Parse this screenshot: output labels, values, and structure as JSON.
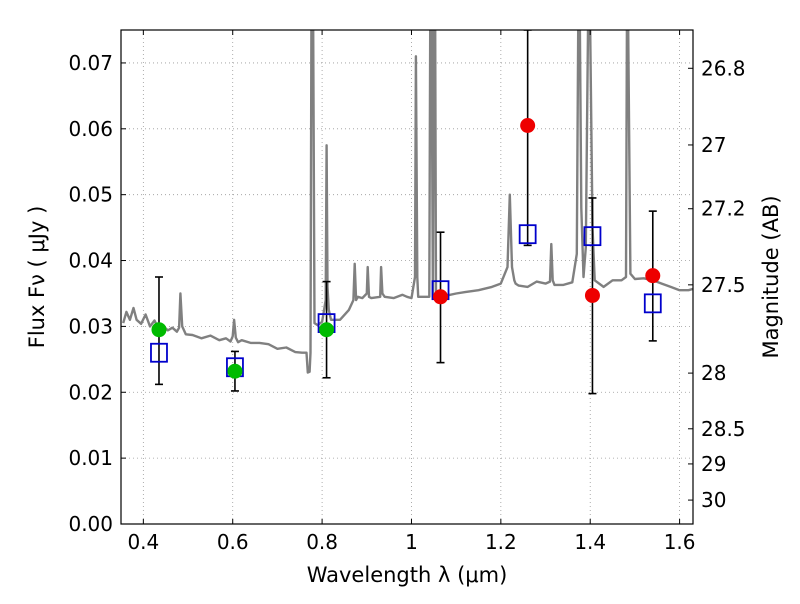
{
  "chart_data": {
    "type": "scatter",
    "xlabel": "Wavelength  λ (μm)",
    "ylabel": "Flux  Fν  ( μJy )",
    "y2label": "Magnitude (AB)",
    "xlim": [
      0.35,
      1.63
    ],
    "ylim": [
      0.0,
      0.075
    ],
    "grid": true,
    "x_ticks": [
      0.4,
      0.6,
      0.8,
      1.0,
      1.2,
      1.4,
      1.6
    ],
    "x_tick_labels": [
      "0.4",
      "0.6",
      "0.8",
      "1",
      "1.2",
      "1.4",
      "1.6"
    ],
    "y_ticks": [
      0.0,
      0.01,
      0.02,
      0.03,
      0.04,
      0.05,
      0.06,
      0.07
    ],
    "y_tick_labels": [
      "0.00",
      "0.01",
      "0.02",
      "0.03",
      "0.04",
      "0.05",
      "0.06",
      "0.07"
    ],
    "y2_ticks": [
      {
        "mag": 26.8,
        "label": "26.8"
      },
      {
        "mag": 27,
        "label": "27"
      },
      {
        "mag": 27.2,
        "label": "27.2"
      },
      {
        "mag": 27.5,
        "label": "27.5"
      },
      {
        "mag": 28,
        "label": "28"
      },
      {
        "mag": 28.5,
        "label": "28.5"
      },
      {
        "mag": 29,
        "label": "29"
      },
      {
        "mag": 30,
        "label": "30"
      }
    ],
    "colors": {
      "spectrum": "#808080",
      "model_box": "#0000cc",
      "detection": "#00bb00",
      "photometry": "#ee0000",
      "errorbar": "#000000",
      "grid": "#999999"
    },
    "spectrum": {
      "name": "",
      "x": [
        0.355,
        0.362,
        0.37,
        0.378,
        0.385,
        0.395,
        0.405,
        0.415,
        0.425,
        0.435,
        0.445,
        0.455,
        0.465,
        0.475,
        0.48,
        0.483,
        0.487,
        0.495,
        0.51,
        0.53,
        0.55,
        0.57,
        0.585,
        0.595,
        0.6,
        0.603,
        0.607,
        0.612,
        0.62,
        0.64,
        0.66,
        0.68,
        0.7,
        0.72,
        0.74,
        0.755,
        0.765,
        0.768,
        0.772,
        0.774,
        0.776,
        0.78,
        0.783,
        0.79,
        0.8,
        0.808,
        0.81,
        0.812,
        0.815,
        0.82,
        0.84,
        0.86,
        0.87,
        0.873,
        0.876,
        0.88,
        0.89,
        0.9,
        0.902,
        0.905,
        0.91,
        0.93,
        0.932,
        0.935,
        0.94,
        0.96,
        0.98,
        0.99,
        1.0,
        1.008,
        1.01,
        1.013,
        1.015,
        1.018,
        1.022,
        1.04,
        1.042,
        1.045,
        1.048,
        1.05,
        1.053,
        1.055,
        1.06,
        1.08,
        1.1,
        1.12,
        1.15,
        1.18,
        1.2,
        1.215,
        1.22,
        1.225,
        1.23,
        1.233,
        1.24,
        1.26,
        1.28,
        1.3,
        1.31,
        1.313,
        1.316,
        1.32,
        1.34,
        1.36,
        1.37,
        1.373,
        1.377,
        1.38,
        1.385,
        1.39,
        1.395,
        1.4,
        1.405,
        1.41,
        1.43,
        1.45,
        1.47,
        1.48,
        1.482,
        1.485,
        1.49,
        1.5,
        1.52,
        1.54,
        1.56,
        1.58,
        1.6,
        1.62,
        1.63
      ],
      "y": [
        0.0305,
        0.0322,
        0.031,
        0.0328,
        0.031,
        0.0304,
        0.0318,
        0.03,
        0.0309,
        0.0295,
        0.03,
        0.0294,
        0.0298,
        0.0292,
        0.0298,
        0.035,
        0.03,
        0.0288,
        0.0287,
        0.0282,
        0.0286,
        0.0279,
        0.0282,
        0.0277,
        0.0285,
        0.031,
        0.0283,
        0.0276,
        0.0279,
        0.0275,
        0.0275,
        0.0273,
        0.0266,
        0.0268,
        0.0261,
        0.026,
        0.026,
        0.023,
        0.0231,
        0.026,
        0.075,
        0.075,
        0.0305,
        0.0302,
        0.0307,
        0.034,
        0.0575,
        0.036,
        0.0325,
        0.031,
        0.031,
        0.0325,
        0.034,
        0.0395,
        0.034,
        0.0345,
        0.0343,
        0.035,
        0.039,
        0.0345,
        0.0343,
        0.0345,
        0.039,
        0.035,
        0.0345,
        0.0343,
        0.0348,
        0.0345,
        0.0343,
        0.0375,
        0.071,
        0.0375,
        0.0345,
        0.0345,
        0.0345,
        0.0345,
        0.075,
        0.075,
        0.0345,
        0.075,
        0.075,
        0.034,
        0.0342,
        0.0347,
        0.035,
        0.0352,
        0.0355,
        0.036,
        0.0365,
        0.039,
        0.05,
        0.039,
        0.037,
        0.0365,
        0.0362,
        0.036,
        0.0368,
        0.0365,
        0.0368,
        0.0425,
        0.037,
        0.0363,
        0.0363,
        0.0367,
        0.041,
        0.075,
        0.075,
        0.048,
        0.0375,
        0.042,
        0.075,
        0.075,
        0.045,
        0.037,
        0.036,
        0.037,
        0.037,
        0.0375,
        0.075,
        0.075,
        0.038,
        0.0372,
        0.0373,
        0.037,
        0.0365,
        0.036,
        0.0355,
        0.0355,
        0.0357
      ]
    },
    "model_boxes": [
      {
        "x": 0.435,
        "y": 0.026
      },
      {
        "x": 0.605,
        "y": 0.0238
      },
      {
        "x": 0.81,
        "y": 0.0305
      },
      {
        "x": 1.065,
        "y": 0.0355
      },
      {
        "x": 1.26,
        "y": 0.044
      },
      {
        "x": 1.405,
        "y": 0.0437
      },
      {
        "x": 1.54,
        "y": 0.0335
      }
    ],
    "green_points": [
      {
        "x": 0.435,
        "y": 0.0295,
        "yerr": [
          0.0212,
          0.0375
        ]
      },
      {
        "x": 0.605,
        "y": 0.0232,
        "yerr": [
          0.0202,
          0.0262
        ]
      },
      {
        "x": 0.81,
        "y": 0.0295,
        "yerr": [
          0.0222,
          0.0368
        ]
      }
    ],
    "red_points": [
      {
        "x": 1.065,
        "y": 0.0345,
        "yerr": [
          0.0245,
          0.0443
        ]
      },
      {
        "x": 1.26,
        "y": 0.0605,
        "yerr": [
          0.0423,
          0.075
        ]
      },
      {
        "x": 1.405,
        "y": 0.0347,
        "yerr": [
          0.0198,
          0.0495
        ]
      },
      {
        "x": 1.54,
        "y": 0.0377,
        "yerr": [
          0.0278,
          0.0475
        ]
      }
    ]
  }
}
